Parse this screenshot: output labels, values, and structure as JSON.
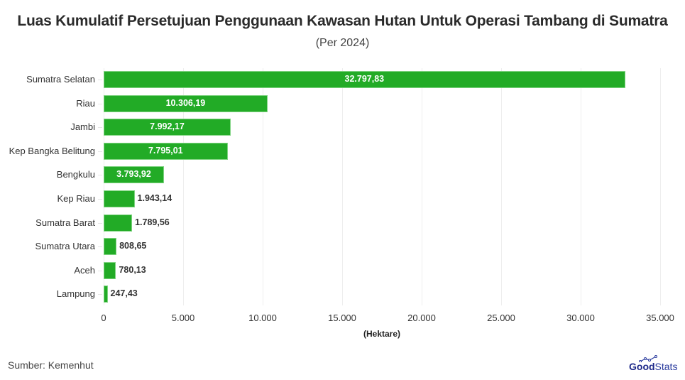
{
  "header": {
    "title": "Luas Kumulatif Persetujuan Penggunaan Kawasan Hutan Untuk Operasi Tambang di Sumatra",
    "subtitle": "(Per 2024)"
  },
  "footer": {
    "source": "Sumber: Kemenhut",
    "logo_bold": "Good",
    "logo_light": "Stats"
  },
  "colors": {
    "bar": "#22ab26",
    "logo": "#1e2a8a"
  },
  "chart_data": {
    "type": "bar",
    "orientation": "horizontal",
    "title": "Luas Kumulatif Persetujuan Penggunaan Kawasan Hutan Untuk Operasi Tambang di Sumatra",
    "subtitle": "(Per 2024)",
    "xlabel": "(Hektare)",
    "ylabel": "",
    "xlim": [
      0,
      35000
    ],
    "x_ticks": [
      "0",
      "5.000",
      "10.000",
      "15.000",
      "20.000",
      "25.000",
      "30.000",
      "35.000"
    ],
    "grid": true,
    "legend": "none",
    "categories": [
      "Sumatra Selatan",
      "Riau",
      "Jambi",
      "Kep Bangka Belitung",
      "Bengkulu",
      "Kep Riau",
      "Sumatra Barat",
      "Sumatra Utara",
      "Aceh",
      "Lampung"
    ],
    "values": [
      32797.83,
      10306.19,
      7992.17,
      7795.01,
      3793.92,
      1943.14,
      1789.56,
      808.65,
      780.13,
      247.43
    ],
    "value_labels": [
      "32.797,83",
      "10.306,19",
      "7.992,17",
      "7.795,01",
      "3.793,92",
      "1.943,14",
      "1.789,56",
      "808,65",
      "780,13",
      "247,43"
    ]
  }
}
